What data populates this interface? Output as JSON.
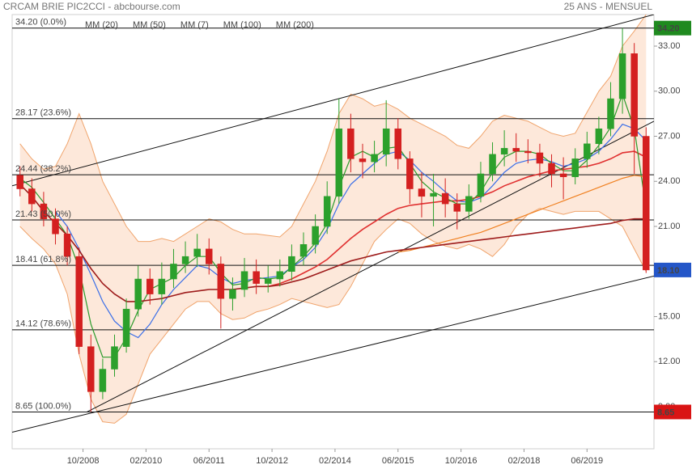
{
  "chart_data": {
    "type": "candlestick",
    "title": "CRCAM BRIE PIC2CCI - abcbourse.com",
    "subtitle": "25 ANS - MENSUEL",
    "xlim": [
      "04/2007",
      "11/2020"
    ],
    "xticks": [
      "10/2008",
      "02/2010",
      "06/2011",
      "10/2012",
      "02/2014",
      "06/2015",
      "10/2016",
      "02/2018",
      "06/2019"
    ],
    "ylim": [
      6.2,
      35.1
    ],
    "yticks": [
      {
        "value": 9,
        "label": "9.00"
      },
      {
        "value": 12,
        "label": "12.00"
      },
      {
        "value": 15,
        "label": "15.00"
      },
      {
        "value": 18,
        "label": "18.00"
      },
      {
        "value": 21,
        "label": "21.00"
      },
      {
        "value": 24,
        "label": "24.00"
      },
      {
        "value": 27,
        "label": "27.00"
      },
      {
        "value": 30,
        "label": "30.00"
      },
      {
        "value": 33,
        "label": "33.00"
      }
    ],
    "grid": false,
    "x": [
      "06/2007",
      "09/2007",
      "12/2007",
      "03/2008",
      "06/2008",
      "09/2008",
      "12/2008",
      "03/2009",
      "06/2009",
      "09/2009",
      "12/2009",
      "03/2010",
      "06/2010",
      "09/2010",
      "12/2010",
      "03/2011",
      "06/2011",
      "09/2011",
      "12/2011",
      "03/2012",
      "06/2012",
      "09/2012",
      "12/2012",
      "03/2013",
      "06/2013",
      "09/2013",
      "12/2013",
      "03/2014",
      "06/2014",
      "09/2014",
      "12/2014",
      "03/2015",
      "06/2015",
      "09/2015",
      "12/2015",
      "03/2016",
      "06/2016",
      "09/2016",
      "12/2016",
      "03/2017",
      "06/2017",
      "09/2017",
      "12/2017",
      "03/2018",
      "06/2018",
      "09/2018",
      "12/2018",
      "03/2019",
      "06/2019",
      "09/2019",
      "12/2019",
      "03/2020",
      "06/2020",
      "09/2020"
    ],
    "candles": {
      "up_color": "#2ca02c",
      "down_color": "#d42020",
      "open": [
        24.4,
        23.5,
        22.5,
        21.5,
        20.5,
        19,
        13,
        10,
        11.5,
        13,
        15.5,
        17.5,
        16.5,
        17.5,
        18.5,
        19,
        19.5,
        18.5,
        16.2,
        16.8,
        18,
        17.2,
        17.5,
        18,
        19,
        19.8,
        21,
        23,
        27.5,
        25.5,
        25.3,
        25.8,
        27.5,
        25.5,
        23.5,
        23,
        23.2,
        22.5,
        22,
        23,
        24.5,
        25.8,
        26.2,
        26,
        25.9,
        25.2,
        24.5,
        24.3,
        25.5,
        26.5,
        27.5,
        29.5,
        32.5,
        27
      ],
      "high": [
        25.0,
        24.2,
        23.3,
        22.2,
        21.0,
        19.6,
        13.8,
        12.2,
        13.8,
        16.2,
        18.4,
        18.2,
        18.6,
        19.5,
        20.0,
        20.5,
        20.2,
        19.0,
        17.6,
        18.9,
        18.8,
        18.4,
        18.8,
        19.8,
        20.6,
        21.8,
        24.0,
        29.5,
        28.5,
        26.5,
        26.7,
        29.4,
        28.2,
        26.0,
        24.6,
        24.5,
        24.2,
        23.2,
        23.8,
        25.3,
        26.6,
        27.4,
        27.2,
        26.8,
        26.5,
        25.8,
        25.6,
        26.2,
        27.3,
        28.3,
        30.6,
        34.2,
        33.2,
        27.6
      ],
      "low": [
        23.0,
        22.0,
        21.0,
        19.8,
        18.4,
        12.5,
        8.65,
        9.5,
        11.0,
        12.6,
        15.0,
        15.8,
        15.8,
        16.9,
        17.9,
        18.3,
        17.8,
        14.2,
        15.4,
        16.3,
        16.5,
        16.6,
        17.0,
        17.4,
        18.4,
        19.2,
        20.5,
        22.5,
        24.6,
        24.2,
        24.6,
        25.0,
        24.8,
        22.5,
        21.6,
        21.0,
        21.6,
        20.8,
        21.5,
        22.6,
        24.0,
        25.0,
        25.3,
        25.2,
        24.3,
        23.6,
        22.8,
        23.8,
        24.9,
        25.8,
        27.0,
        28.5,
        24.5,
        17.9
      ],
      "close": [
        23.5,
        22.5,
        21.5,
        20.5,
        19,
        13,
        10,
        11.5,
        13,
        15.5,
        17.5,
        16.5,
        17.5,
        18.5,
        19,
        19.5,
        18.5,
        16.2,
        16.8,
        18,
        17.2,
        17.5,
        18,
        19,
        19.8,
        21,
        23,
        27.5,
        25.5,
        25.3,
        25.8,
        27.5,
        25.5,
        23.5,
        23,
        23.2,
        22.5,
        22,
        23,
        24.5,
        25.8,
        26.2,
        26,
        25.9,
        25.2,
        24.5,
        24.3,
        25.5,
        26.5,
        27.5,
        29.5,
        32.5,
        27,
        18.1
      ]
    },
    "bands": {
      "color": "#f0a46c",
      "fill": "#fde4d4",
      "upper": [
        26.5,
        25.5,
        24.8,
        25.0,
        26.5,
        28.5,
        26.5,
        24.0,
        22.5,
        21.0,
        20.0,
        20.0,
        20.2,
        20.0,
        20.5,
        21.0,
        21.5,
        21.3,
        20.8,
        20.5,
        20.5,
        20.4,
        20.3,
        21.0,
        22.5,
        24.0,
        26.0,
        28.5,
        29.8,
        29.5,
        29.0,
        29.2,
        28.8,
        28.2,
        27.8,
        27.4,
        27.0,
        26.4,
        26.2,
        27.0,
        28.0,
        28.4,
        28.2,
        28.0,
        27.6,
        27.2,
        27.0,
        27.2,
        28.6,
        30.0,
        31.0,
        33.0,
        34.0,
        35.1
      ],
      "lower": [
        21.0,
        20.2,
        19.5,
        18.5,
        16.5,
        12.5,
        9.5,
        8.0,
        7.9,
        8.5,
        10.5,
        12.5,
        13.5,
        14.5,
        15.5,
        16.0,
        16.0,
        15.2,
        14.8,
        14.9,
        15.3,
        15.5,
        15.8,
        16.2,
        16.0,
        15.8,
        15.6,
        15.8,
        17.0,
        18.5,
        20.0,
        20.8,
        21.5,
        21.2,
        20.5,
        20.0,
        19.7,
        19.5,
        19.8,
        19.5,
        19.0,
        19.8,
        21.0,
        21.8,
        22.2,
        22.0,
        21.8,
        22.0,
        22.0,
        22.0,
        21.5,
        21.0,
        19.5,
        18.0
      ]
    },
    "series": [
      {
        "name": "MM (20)",
        "color": "#3a6ee8",
        "values": [
          null,
          null,
          null,
          22.0,
          21.0,
          19.5,
          17.8,
          16.0,
          14.7,
          14.0,
          13.6,
          14.5,
          15.8,
          16.8,
          17.6,
          18.4,
          18.2,
          17.6,
          17.2,
          17.4,
          17.5,
          17.6,
          17.7,
          18.3,
          18.8,
          19.6,
          20.8,
          22.5,
          23.8,
          24.5,
          25.2,
          25.8,
          26.0,
          25.4,
          24.6,
          24.0,
          23.3,
          22.7,
          22.6,
          22.9,
          23.7,
          24.6,
          25.2,
          25.4,
          25.5,
          25.3,
          25.0,
          25.2,
          25.5,
          26.0,
          26.8,
          27.8,
          27.5,
          26.7
        ]
      },
      {
        "name": "MM (50)",
        "color": "#e03030",
        "values": [
          null,
          null,
          null,
          null,
          null,
          null,
          null,
          null,
          null,
          null,
          null,
          null,
          null,
          null,
          null,
          null,
          null,
          null,
          null,
          null,
          null,
          17.0,
          17.2,
          17.5,
          17.9,
          18.3,
          18.8,
          19.5,
          20.2,
          20.8,
          21.3,
          21.8,
          22.2,
          22.4,
          22.5,
          22.6,
          22.7,
          22.7,
          22.8,
          23.0,
          23.3,
          23.7,
          24.0,
          24.3,
          24.5,
          24.7,
          24.8,
          24.9,
          25.0,
          25.2,
          25.5,
          25.9,
          26.0,
          25.6
        ]
      },
      {
        "name": "MM (7)",
        "color": "#2a9a2a",
        "values": [
          24.2,
          23.6,
          22.6,
          21.5,
          20.4,
          18.2,
          14.5,
          12.3,
          12.3,
          13.6,
          15.4,
          16.8,
          17.2,
          17.6,
          18.4,
          19.0,
          19.0,
          17.9,
          17.1,
          17.2,
          17.6,
          17.5,
          17.6,
          18.3,
          19.0,
          19.9,
          21.2,
          23.6,
          25.6,
          26.0,
          25.6,
          26.2,
          26.3,
          25.2,
          24.0,
          23.3,
          22.9,
          22.5,
          22.5,
          23.3,
          24.6,
          25.6,
          26.0,
          26.0,
          25.8,
          25.2,
          24.7,
          24.7,
          25.4,
          26.4,
          27.6,
          29.8,
          27.5,
          22.2
        ]
      },
      {
        "name": "MM (100)",
        "color": "#f08020",
        "values": [
          null,
          null,
          null,
          null,
          null,
          null,
          null,
          null,
          null,
          null,
          null,
          null,
          null,
          null,
          null,
          null,
          null,
          null,
          null,
          null,
          null,
          null,
          null,
          null,
          null,
          null,
          null,
          null,
          null,
          null,
          null,
          null,
          19.3,
          19.4,
          19.6,
          19.8,
          20.0,
          20.2,
          20.4,
          20.6,
          20.9,
          21.2,
          21.5,
          21.8,
          22.1,
          22.4,
          22.7,
          23.0,
          23.3,
          23.6,
          23.9,
          24.2,
          24.4,
          24.3
        ]
      },
      {
        "name": "MM (200)",
        "color": "#9e1c1c",
        "values": [
          23.8,
          23.0,
          22.0,
          21.2,
          20.4,
          19.4,
          18.2,
          17.2,
          16.5,
          16.0,
          16.0,
          16.1,
          16.2,
          16.4,
          16.6,
          16.7,
          16.8,
          16.8,
          16.8,
          16.9,
          17.0,
          17.0,
          17.1,
          17.3,
          17.5,
          17.8,
          18.1,
          18.4,
          18.7,
          18.9,
          19.1,
          19.3,
          19.4,
          19.5,
          19.6,
          19.7,
          19.8,
          19.9,
          20.0,
          20.1,
          20.2,
          20.3,
          20.4,
          20.5,
          20.6,
          20.7,
          20.8,
          20.9,
          21.0,
          21.1,
          21.2,
          21.4,
          21.5,
          21.5
        ]
      }
    ],
    "trend_lines": [
      {
        "x": [
          "04/2007",
          "11/2020"
        ],
        "values": [
          23.7,
          35.1
        ]
      },
      {
        "x": [
          "11/2008",
          "11/2020"
        ],
        "values": [
          8.65,
          28.0
        ]
      },
      {
        "x": [
          "04/2007",
          "11/2020"
        ],
        "values": [
          7.3,
          17.7
        ]
      }
    ],
    "levels": [
      {
        "value": 34.2,
        "label": "34.20 (0.0%)"
      },
      {
        "value": 28.17,
        "label": "28.17 (23.6%)"
      },
      {
        "value": 24.44,
        "label": "24.44 (38.2%)"
      },
      {
        "value": 21.43,
        "label": "21.43 (50.0%)"
      },
      {
        "value": 18.41,
        "label": "18.41 (61.8%)"
      },
      {
        "value": 14.12,
        "label": "14.12 (78.6%)"
      },
      {
        "value": 8.65,
        "label": "8.65 (100.0%)"
      }
    ],
    "price_tags": [
      {
        "value": 34.2,
        "label": "34.20",
        "color": "#1f8a1f"
      },
      {
        "value": 18.1,
        "label": "18.10",
        "color": "#2456c8"
      },
      {
        "value": 8.65,
        "label": "8.65",
        "color": "#d91414"
      }
    ]
  }
}
